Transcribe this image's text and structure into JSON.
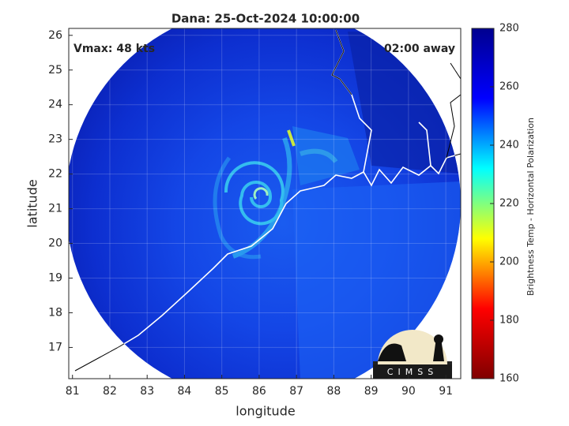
{
  "chart_data": {
    "type": "image",
    "title": "Dana: 25-Oct-2024 10:00:00",
    "xlabel": "longitude",
    "ylabel": "latitude",
    "annotations": [
      "Vmax: 48 kts",
      "02:00 away"
    ],
    "xlim": [
      80.9,
      91.4
    ],
    "xticks": [
      81,
      82,
      83,
      84,
      85,
      86,
      87,
      88,
      89,
      90,
      91
    ],
    "ylim": [
      16.1,
      26.2
    ],
    "yticks": [
      17,
      18,
      19,
      20,
      21,
      22,
      23,
      24,
      25,
      26
    ],
    "grid": true,
    "colorbar": {
      "label": "Brightness Temp - Horizontal Polarization",
      "lim": [
        160,
        280
      ],
      "ticks": [
        160,
        180,
        200,
        220,
        240,
        260,
        280
      ],
      "colormap": [
        "#800000",
        "#ff0000",
        "#ffff00",
        "#00ffff",
        "#0000ff",
        "#00008f"
      ]
    },
    "logo": "CIMSS"
  }
}
